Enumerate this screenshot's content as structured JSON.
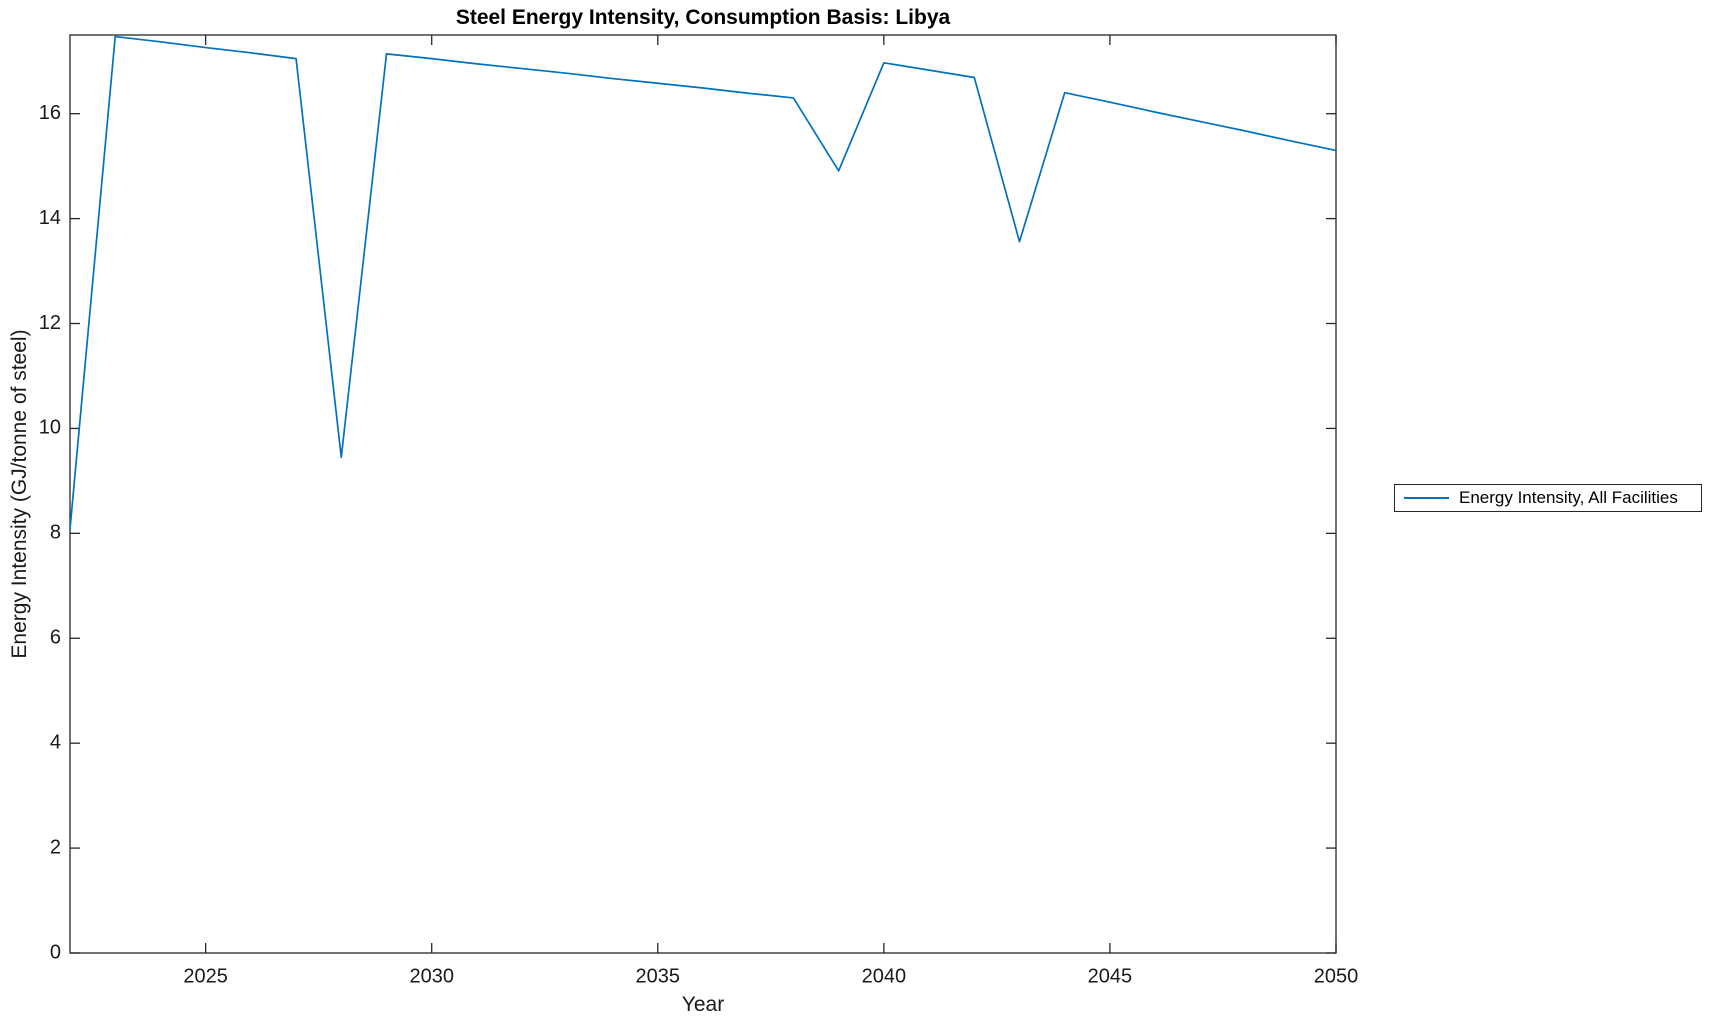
{
  "figure": {
    "background_color": "#ffffff",
    "axis_color": "#262626",
    "text_color": "#1a1a1a"
  },
  "chart_data": {
    "type": "line",
    "title": "Steel Energy Intensity, Consumption Basis: Libya",
    "xlabel": "Year",
    "ylabel": "Energy Intensity (GJ/tonne of steel)",
    "xlim": [
      2022,
      2050
    ],
    "ylim": [
      0,
      17.5
    ],
    "x_ticks": [
      2025,
      2030,
      2035,
      2040,
      2045,
      2050
    ],
    "y_ticks": [
      0,
      2,
      4,
      6,
      8,
      10,
      12,
      14,
      16
    ],
    "grid": false,
    "box": true,
    "legend_position": "outside-right",
    "series": [
      {
        "name": "Energy Intensity, All Facilities",
        "color": "#0072BD",
        "x": [
          2022,
          2023,
          2024,
          2025,
          2026,
          2027,
          2028,
          2029,
          2030,
          2031,
          2032,
          2033,
          2034,
          2035,
          2036,
          2037,
          2038,
          2039,
          2040,
          2041,
          2042,
          2043,
          2044,
          2045,
          2046,
          2047,
          2048,
          2049,
          2050
        ],
        "values": [
          8.08,
          17.47,
          17.37,
          17.26,
          17.16,
          17.05,
          9.45,
          17.14,
          17.05,
          16.95,
          16.86,
          16.77,
          16.67,
          16.58,
          16.49,
          16.39,
          16.3,
          14.91,
          16.97,
          16.83,
          16.69,
          13.56,
          16.4,
          16.22,
          16.03,
          15.85,
          15.67,
          15.48,
          15.3
        ]
      }
    ]
  },
  "legend": {
    "entries": [
      {
        "label": "Energy Intensity, All Facilities",
        "color": "#0072BD"
      }
    ]
  }
}
